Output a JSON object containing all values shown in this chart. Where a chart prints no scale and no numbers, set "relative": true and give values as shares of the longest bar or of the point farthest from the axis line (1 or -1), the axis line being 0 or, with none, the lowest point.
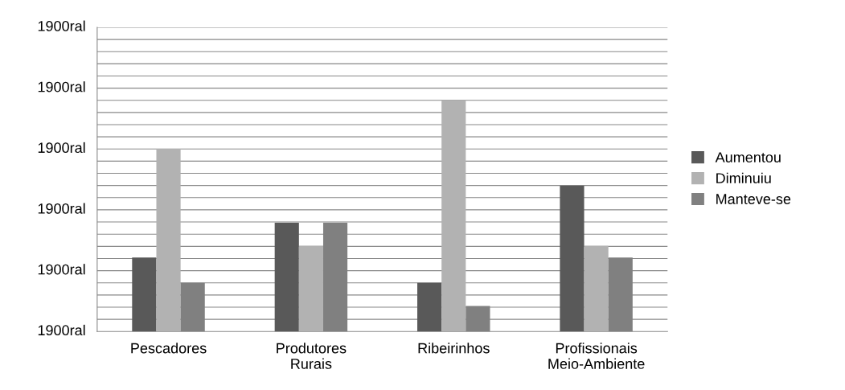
{
  "chart_data": {
    "type": "bar",
    "relative": true,
    "categories": [
      "Pescadores",
      "Produtores Rurais",
      "Ribeirinhos",
      "Profissionais Meio-Ambiente"
    ],
    "series": [
      {
        "name": "Aumentou",
        "color": "#595959",
        "values": [
          0.32,
          0.47,
          0.21,
          0.63
        ]
      },
      {
        "name": "Diminuiu",
        "color": "#b2b2b2",
        "values": [
          0.79,
          0.37,
          1,
          0.37
        ]
      },
      {
        "name": "Manteve-se",
        "color": "#808080",
        "values": [
          0.21,
          0.47,
          0.11,
          0.32
        ]
      }
    ],
    "annotations": [
      "1900ral",
      "1900ral",
      "1900ral",
      "1900ral",
      "1900ral",
      "1900ral"
    ],
    "grid": "y",
    "legend": "right"
  }
}
